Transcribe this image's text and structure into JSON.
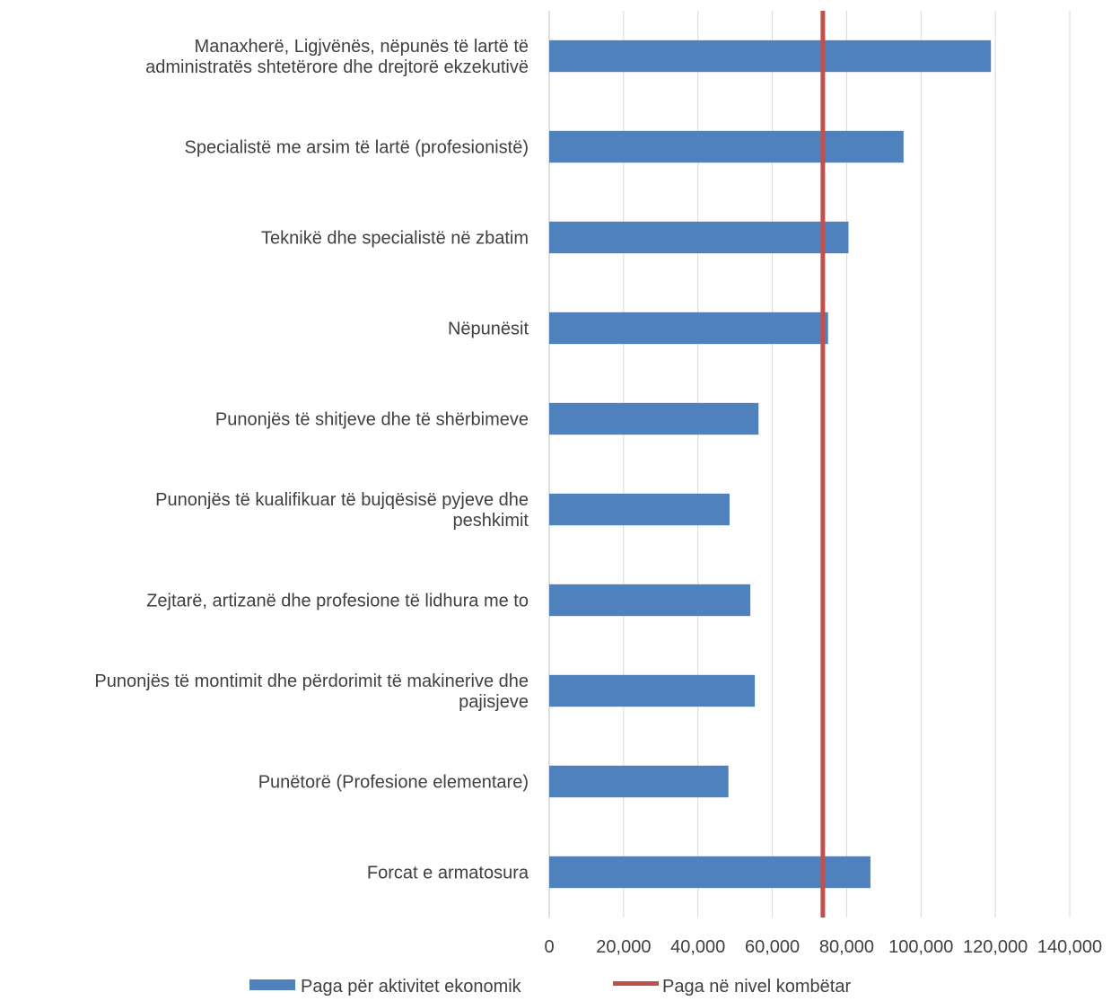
{
  "chart_data": {
    "type": "bar",
    "orientation": "horizontal",
    "categories": [
      [
        "Manaxherë, Ligjvënës, nëpunës të lartë të",
        "administratës shtetërore dhe drejtorë ekzekutivë"
      ],
      [
        "Specialistë me arsim të lartë (profesionistë)"
      ],
      [
        "Teknikë dhe specialistë në zbatim"
      ],
      [
        "Nëpunësit"
      ],
      [
        "Punonjës të shitjeve dhe të shërbimeve"
      ],
      [
        "Punonjës të kualifikuar të bujqësisë pyjeve dhe",
        "peshkimit"
      ],
      [
        "Zejtarë, artizanë dhe profesione të lidhura me to"
      ],
      [
        "Punonjës të montimit dhe përdorimit të makinerive dhe",
        "pajisjeve"
      ],
      [
        "Punëtorë (Profesione elementare)"
      ],
      [
        "Forcat e armatosura"
      ]
    ],
    "series": [
      {
        "name": "Paga për aktivitet ekonomik",
        "type": "bar",
        "color": "#4f81bd",
        "values": [
          118800,
          95300,
          80500,
          75000,
          56300,
          48500,
          54100,
          55300,
          48200,
          86400
        ]
      },
      {
        "name": "Paga në nivel kombëtar",
        "type": "line",
        "color": "#c0504d",
        "value": 73600
      }
    ],
    "xlim": [
      0,
      140000
    ],
    "xticks": [
      0,
      20000,
      40000,
      60000,
      80000,
      100000,
      120000,
      140000
    ],
    "xtick_labels": [
      "0",
      "20,000",
      "40,000",
      "60,000",
      "80,000",
      "100,000",
      "120,000",
      "140,000"
    ],
    "grid": "vertical",
    "legend": "bottom"
  }
}
